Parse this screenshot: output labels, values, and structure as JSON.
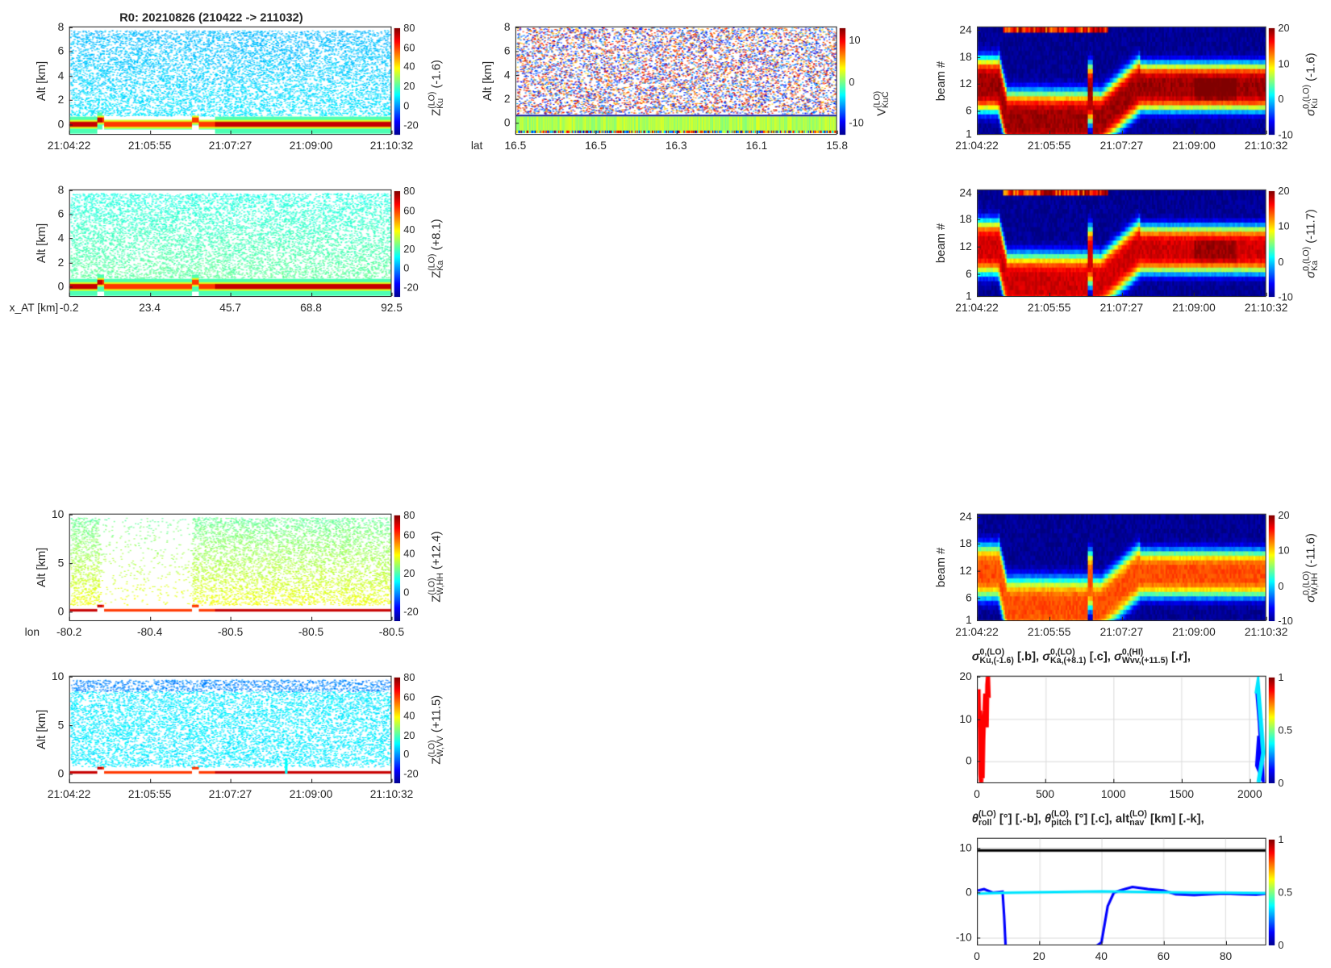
{
  "figure_title": "R0:  20210826 (210422 -> 211032)",
  "chart_data": [
    {
      "id": "ku",
      "type": "heatmap",
      "ylabel": "Alt [km]",
      "ylim": [
        -0.8,
        8
      ],
      "yticks": [
        "0",
        "2",
        "4",
        "6",
        "8"
      ],
      "ytick_values": [
        0,
        2,
        4,
        6,
        8
      ],
      "xticks": [
        "21:04:22",
        "21:05:55",
        "21:07:27",
        "21:09:00",
        "21:10:32"
      ],
      "xlabel": "",
      "colorbar": {
        "ticks": [
          "-20",
          "0",
          "20",
          "40",
          "60",
          "80"
        ],
        "range": [
          -30,
          80
        ],
        "label": {
          "base": "Z",
          "sup": "(LO)",
          "sub": "Ku",
          "suffix": " (-1.6)"
        }
      }
    },
    {
      "id": "ka",
      "type": "heatmap",
      "ylabel": "Alt [km]",
      "ylim": [
        -0.8,
        8
      ],
      "yticks": [
        "0",
        "2",
        "4",
        "6",
        "8"
      ],
      "ytick_values": [
        0,
        2,
        4,
        6,
        8
      ],
      "xticks": [
        "-0.2",
        "23.4",
        "45.7",
        "68.8",
        "92.5"
      ],
      "xlabel": "x_AT [km]",
      "colorbar": {
        "ticks": [
          "-20",
          "0",
          "20",
          "40",
          "60",
          "80"
        ],
        "range": [
          -30,
          80
        ],
        "label": {
          "base": "Z",
          "sup": "(LO)",
          "sub": "Ka",
          "suffix": " (+8.1)"
        }
      }
    },
    {
      "id": "whh",
      "type": "heatmap",
      "ylabel": "Alt [km]",
      "ylim": [
        -0.9,
        10
      ],
      "yticks": [
        "0",
        "5",
        "10"
      ],
      "ytick_values": [
        0,
        5,
        10
      ],
      "xticks": [
        "-80.2",
        "-80.4",
        "-80.5",
        "-80.5",
        "-80.5"
      ],
      "xlabel": "lon",
      "colorbar": {
        "ticks": [
          "-20",
          "0",
          "20",
          "40",
          "60",
          "80"
        ],
        "range": [
          -30,
          80
        ],
        "label": {
          "base": "Z",
          "sup": "(LO)",
          "sub": "W,HH",
          "suffix": " (+12.4)"
        }
      }
    },
    {
      "id": "wvv",
      "type": "heatmap",
      "ylabel": "Alt [km]",
      "ylim": [
        -0.9,
        10
      ],
      "yticks": [
        "0",
        "5",
        "10"
      ],
      "ytick_values": [
        0,
        5,
        10
      ],
      "xticks": [
        "21:04:22",
        "21:05:55",
        "21:07:27",
        "21:09:00",
        "21:10:32"
      ],
      "xlabel": "",
      "colorbar": {
        "ticks": [
          "-20",
          "0",
          "20",
          "40",
          "60",
          "80"
        ],
        "range": [
          -30,
          80
        ],
        "label": {
          "base": "Z",
          "sup": "(LO)",
          "sub": "W,VV",
          "suffix": " (+11.5)"
        }
      }
    },
    {
      "id": "vel",
      "type": "heatmap",
      "ylabel": "Alt [km]",
      "ylim": [
        -0.9,
        8
      ],
      "yticks": [
        "0",
        "2",
        "4",
        "6",
        "8"
      ],
      "ytick_values": [
        0,
        2,
        4,
        6,
        8
      ],
      "xticks": [
        "16.5",
        "16.5",
        "16.3",
        "16.1",
        "15.8"
      ],
      "xlabel": "lat",
      "colorbar": {
        "ticks": [
          "-10",
          "0",
          "10"
        ],
        "range": [
          -13,
          13
        ],
        "label": {
          "base": "V",
          "sup": "(LO)",
          "sub": "KuC",
          "suffix": ""
        }
      }
    },
    {
      "id": "beam_ku",
      "type": "heatmap",
      "ylabel": "beam #",
      "ylim": [
        1,
        24.5
      ],
      "yticks": [
        "1",
        "6",
        "12",
        "18",
        "24"
      ],
      "ytick_values": [
        1,
        6,
        12,
        18,
        24
      ],
      "xticks": [
        "21:04:22",
        "21:05:55",
        "21:07:27",
        "21:09:00",
        "21:10:32"
      ],
      "xlabel": "",
      "colorbar": {
        "ticks": [
          "-10",
          "0",
          "10",
          "20"
        ],
        "range": [
          -10,
          20
        ],
        "label": {
          "base": "σ",
          "sup": "0,(LO)",
          "sub": "Ku",
          "suffix": " (-1.6)"
        }
      }
    },
    {
      "id": "beam_ka",
      "type": "heatmap",
      "ylabel": "beam #",
      "ylim": [
        1,
        24.5
      ],
      "yticks": [
        "1",
        "6",
        "12",
        "18",
        "24"
      ],
      "ytick_values": [
        1,
        6,
        12,
        18,
        24
      ],
      "xticks": [
        "21:04:22",
        "21:05:55",
        "21:07:27",
        "21:09:00",
        "21:10:32"
      ],
      "xlabel": "",
      "colorbar": {
        "ticks": [
          "-10",
          "0",
          "10",
          "20"
        ],
        "range": [
          -10,
          20
        ],
        "label": {
          "base": "σ",
          "sup": "0,(LO)",
          "sub": "Ka",
          "suffix": " (-11.7)"
        }
      }
    },
    {
      "id": "beam_w",
      "type": "heatmap",
      "ylabel": "beam #",
      "ylim": [
        1,
        24.5
      ],
      "yticks": [
        "1",
        "6",
        "12",
        "18",
        "24"
      ],
      "ytick_values": [
        1,
        6,
        12,
        18,
        24
      ],
      "xticks": [
        "21:04:22",
        "21:05:55",
        "21:07:27",
        "21:09:00",
        "21:10:32"
      ],
      "xlabel": "",
      "colorbar": {
        "ticks": [
          "-10",
          "0",
          "10",
          "20"
        ],
        "range": [
          -10,
          20
        ],
        "label": {
          "base": "σ",
          "sup": "0,(LO)",
          "sub": "W,HH",
          "suffix": " (-11.6)"
        }
      }
    },
    {
      "id": "sigma",
      "type": "scatter",
      "xlim": [
        0,
        2120
      ],
      "ylim": [
        -5,
        20
      ],
      "xticks": [
        "0",
        "500",
        "1000",
        "1500",
        "2000"
      ],
      "xtick_values": [
        0,
        500,
        1000,
        1500,
        2000
      ],
      "yticks": [
        "0",
        "10",
        "20"
      ],
      "ytick_values": [
        0,
        10,
        20
      ],
      "title_parts": [
        {
          "base": "σ",
          "sup": "0,(LO)",
          "sub": "Ku,(-1.6)",
          "suffix": " [.b],  "
        },
        {
          "base": "σ",
          "sup": "0,(LO)",
          "sub": "Ka,(+8.1)",
          "suffix": " [.c],  "
        },
        {
          "base": "σ",
          "sup": "0,(HI)",
          "sub": "Wvv,(+11.5)",
          "suffix": " [.r],"
        }
      ],
      "colorbar": {
        "ticks": [
          "0",
          "0.5",
          "1"
        ],
        "range": [
          0,
          1
        ]
      },
      "series": [
        {
          "name": "Wvv",
          "color": "#ff0000",
          "x": [
            0,
            5,
            10,
            15,
            20,
            25,
            30,
            35,
            40,
            45,
            50,
            55,
            60,
            65,
            70,
            75,
            80
          ],
          "y": [
            15,
            17,
            8,
            12,
            -3,
            -5,
            0,
            -4,
            5,
            10,
            12,
            16,
            14,
            8,
            18,
            20,
            15
          ]
        },
        {
          "name": "Ku",
          "color": "#0000ff",
          "x": [
            2060,
            2070,
            2080,
            2090,
            2100,
            2060,
            2075
          ],
          "y": [
            17,
            13,
            9,
            3,
            -4,
            -1,
            6
          ]
        },
        {
          "name": "Ka",
          "color": "#00e5ff",
          "x": [
            2055,
            2065,
            2075,
            2085,
            2095,
            2105,
            2080,
            2070
          ],
          "y": [
            16,
            18,
            14,
            10,
            6,
            2,
            -3,
            -5
          ]
        }
      ]
    },
    {
      "id": "theta",
      "type": "line",
      "xlim": [
        0,
        93
      ],
      "ylim": [
        -11.5,
        12
      ],
      "xticks": [
        "0",
        "20",
        "40",
        "60",
        "80"
      ],
      "xtick_values": [
        0,
        20,
        40,
        60,
        80
      ],
      "yticks": [
        "-10",
        "0",
        "10"
      ],
      "ytick_values": [
        -10,
        0,
        10
      ],
      "title_parts": [
        {
          "base": "θ",
          "sup": "(LO)",
          "sub": "roll",
          "suffix": " [°] [.-b],  "
        },
        {
          "base": "θ",
          "sup": "(LO)",
          "sub": "pitch",
          "suffix": " [°] [.c],  "
        },
        {
          "base": "alt",
          "sup": "(LO)",
          "sub": "nav",
          "suffix": " [km] [.-k],"
        }
      ],
      "colorbar": {
        "ticks": [
          "0",
          "0.5",
          "1"
        ],
        "range": [
          0,
          1
        ]
      },
      "series": [
        {
          "name": "roll",
          "color": "#0000ff",
          "x": [
            0,
            2,
            5,
            8,
            8.5,
            9,
            36,
            37,
            38,
            40,
            42,
            44,
            46,
            50,
            55,
            60,
            64,
            70,
            75,
            80,
            85,
            90,
            93
          ],
          "y": [
            0.5,
            0.8,
            0,
            0.2,
            -5,
            -12,
            -12,
            -12,
            -12,
            -11,
            -3,
            0,
            0.5,
            1.3,
            0.8,
            0.5,
            -0.3,
            -0.5,
            -0.3,
            -0.2,
            -0.3,
            -0.4,
            -0.2
          ]
        },
        {
          "name": "pitch",
          "color": "#00e5ff",
          "x": [
            0,
            10,
            20,
            30,
            40,
            50,
            60,
            70,
            80,
            93
          ],
          "y": [
            -0.2,
            0,
            0.1,
            0.2,
            0.3,
            0.2,
            0.1,
            0,
            0,
            -0.1
          ]
        },
        {
          "name": "alt_nav",
          "color": "#000000",
          "x": [
            0,
            93
          ],
          "y": [
            9.4,
            9.4
          ]
        }
      ]
    }
  ]
}
